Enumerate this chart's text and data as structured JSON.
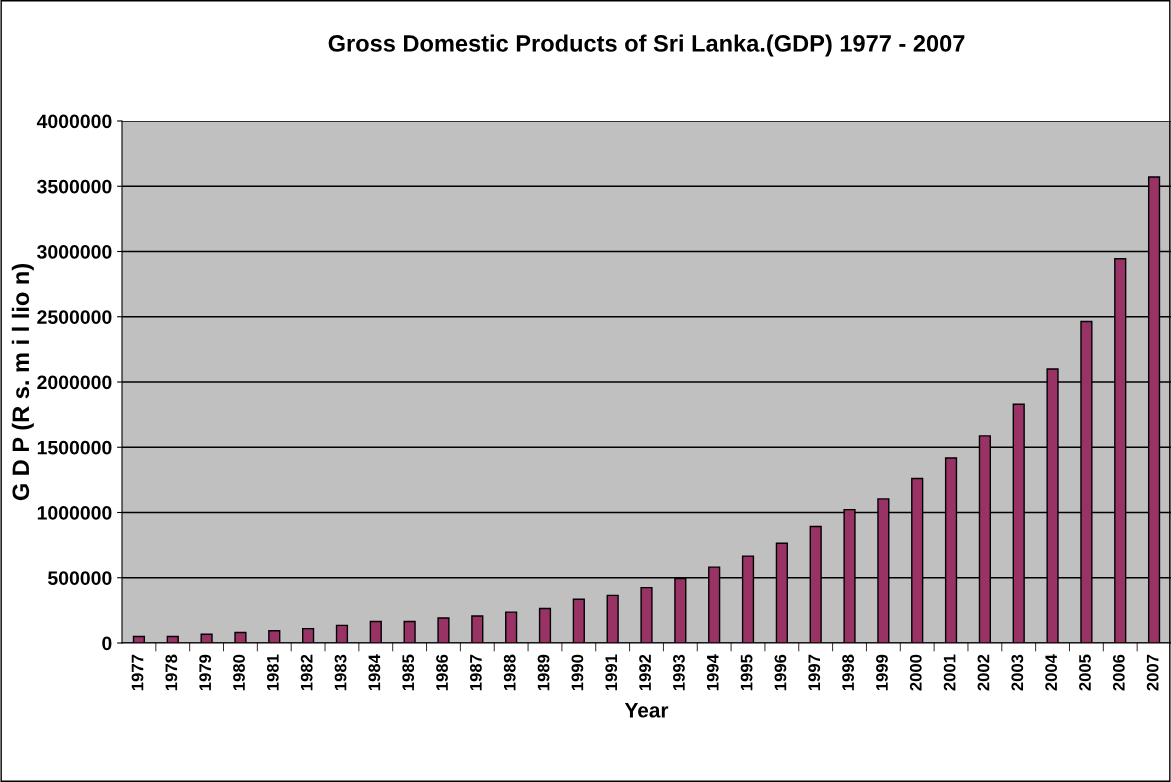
{
  "chart_data": {
    "type": "bar",
    "title": "Gross Domestic Products of Sri Lanka.(GDP) 1977 - 2007",
    "xlabel": "Year",
    "ylabel": "G D P (R s. m i l lio n)",
    "categories": [
      "1977",
      "1978",
      "1979",
      "1980",
      "1981",
      "1982",
      "1983",
      "1984",
      "1985",
      "1986",
      "1987",
      "1988",
      "1989",
      "1990",
      "1991",
      "1992",
      "1993",
      "1994",
      "1995",
      "1996",
      "1997",
      "1998",
      "1999",
      "2000",
      "2001",
      "2002",
      "2003",
      "2004",
      "2005",
      "2006",
      "2007"
    ],
    "series": [
      {
        "color": "#993366",
        "values": [
          50000,
          50000,
          67000,
          80000,
          94000,
          110000,
          135000,
          165000,
          165000,
          192000,
          207000,
          237000,
          264000,
          335000,
          365000,
          424000,
          494000,
          581000,
          666000,
          764000,
          893000,
          1022000,
          1104000,
          1261000,
          1418000,
          1587000,
          1830000,
          2100000,
          2464000,
          2944000,
          3571000
        ]
      }
    ],
    "ylim": [
      0,
      4000000
    ],
    "yticks": [
      0,
      500000,
      1000000,
      1500000,
      2000000,
      2500000,
      3000000,
      3500000,
      4000000
    ],
    "grid": "y",
    "legend": false
  }
}
